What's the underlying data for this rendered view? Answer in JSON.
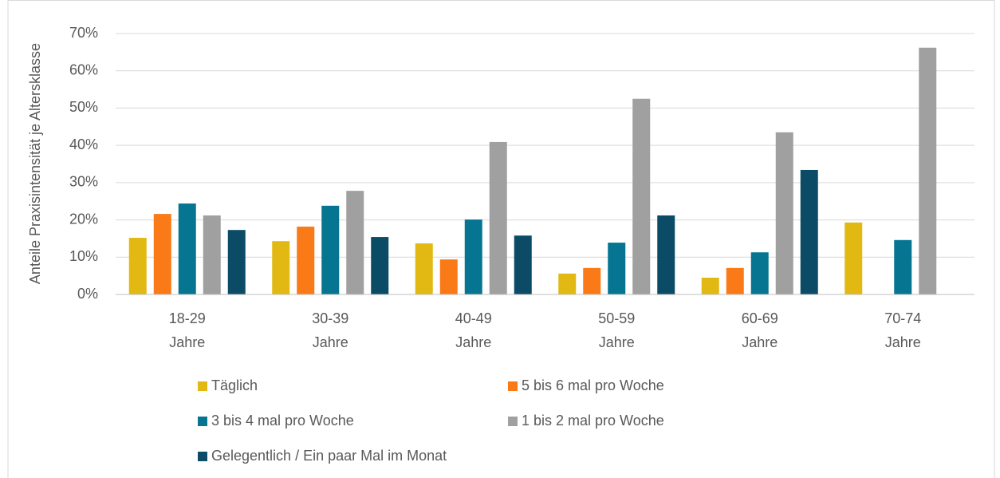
{
  "chart_data": {
    "type": "bar",
    "y_label": "Anteile Praxisintensität je Altersklasse",
    "categories": [
      [
        "18-29",
        "Jahre"
      ],
      [
        "30-39",
        "Jahre"
      ],
      [
        "40-49",
        "Jahre"
      ],
      [
        "50-59",
        "Jahre"
      ],
      [
        "60-69",
        "Jahre"
      ],
      [
        "70-74",
        "Jahre"
      ]
    ],
    "series": [
      {
        "name": "Täglich",
        "color": "#e2b912",
        "values": [
          15.2,
          14.3,
          13.7,
          5.6,
          4.5,
          19.3
        ]
      },
      {
        "name": "5 bis 6 mal pro Woche",
        "color": "#f97a16",
        "values": [
          21.6,
          18.2,
          9.4,
          7.1,
          7.1,
          null
        ]
      },
      {
        "name": "3 bis 4 mal pro Woche",
        "color": "#067592",
        "values": [
          24.4,
          23.8,
          20.1,
          13.9,
          11.3,
          14.6
        ]
      },
      {
        "name": "1 bis 2 mal pro Woche",
        "color": "#a0a0a0",
        "values": [
          21.2,
          27.8,
          40.9,
          52.5,
          43.5,
          66.2
        ]
      },
      {
        "name": "Gelegentlich / Ein paar Mal im Monat",
        "color": "#0b4b66",
        "values": [
          17.3,
          15.4,
          15.8,
          21.2,
          33.4,
          null
        ]
      }
    ],
    "ylim": [
      0,
      70
    ],
    "yticks": [
      {
        "value": 0,
        "label": "0%"
      },
      {
        "value": 10,
        "label": "10%"
      },
      {
        "value": 20,
        "label": "20%"
      },
      {
        "value": 30,
        "label": "30%"
      },
      {
        "value": 40,
        "label": "40%"
      },
      {
        "value": 50,
        "label": "50%"
      },
      {
        "value": 60,
        "label": "60%"
      },
      {
        "value": 70,
        "label": "70%"
      }
    ],
    "grid": true,
    "legend": "bottom"
  }
}
